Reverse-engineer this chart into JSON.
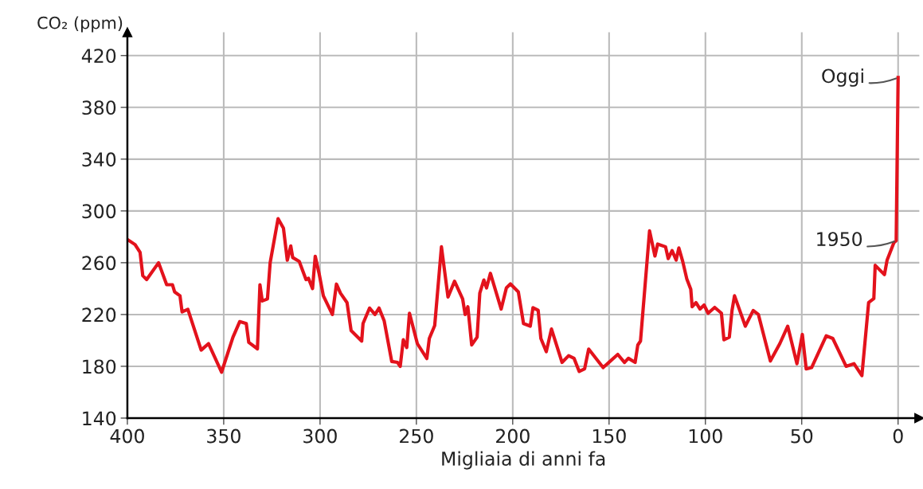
{
  "chart_data": {
    "type": "line",
    "ylabel": "CO₂ (ppm)",
    "xlabel": "Migliaia di anni fa",
    "x": [
      400,
      396,
      393.4,
      392,
      390,
      383.8,
      379.6,
      376.6,
      375.5,
      372.7,
      371.6,
      368.6,
      361.7,
      357.9,
      351.1,
      345.2,
      341.7,
      338.3,
      337,
      332.5,
      331.2,
      330,
      327.3,
      325.9,
      321.8,
      319,
      317,
      315.2,
      314.2,
      310.8,
      307.3,
      306,
      303.9,
      302.5,
      300.4,
      298.3,
      293.6,
      291.5,
      289.4,
      286,
      283.9,
      278.4,
      277.7,
      274.3,
      271.5,
      269.4,
      266.7,
      262.8,
      259.8,
      258.4,
      256.8,
      255,
      253.6,
      249.5,
      244.6,
      243.3,
      240.5,
      237,
      233.6,
      230.2,
      226,
      224.7,
      223.3,
      221.3,
      218.5,
      217.1,
      215,
      213.6,
      211.6,
      206,
      203.3,
      201.2,
      197.1,
      194.4,
      190.9,
      189.5,
      186.8,
      185.4,
      182.6,
      179.9,
      174.4,
      171,
      168.2,
      165.5,
      162.7,
      160.6,
      153.1,
      145.5,
      142,
      140,
      136.5,
      135.1,
      133.7,
      129,
      126.2,
      124.8,
      120.7,
      119.3,
      117.3,
      115.2,
      113.8,
      111.8,
      109.7,
      107.6,
      106.9,
      104.9,
      102.8,
      100.7,
      98.6,
      95.2,
      91.7,
      90.4,
      87.6,
      86.2,
      84.9,
      79.3,
      75.2,
      72.5,
      66.3,
      61.4,
      57.3,
      52.5,
      49.7,
      47.7,
      44.9,
      37.3,
      33.9,
      27,
      22.9,
      18.8,
      15.3,
      12.6,
      11.9,
      7.1,
      5.7,
      2.2,
      1,
      0
    ],
    "series": [
      {
        "color": "#e3121c",
        "values": [
          278,
          274,
          268,
          250,
          247,
          260,
          243,
          243,
          237.5,
          234.5,
          222,
          224,
          192.5,
          197.5,
          175.5,
          202.5,
          214.5,
          213,
          198.5,
          193.5,
          243,
          230.5,
          232,
          260,
          294,
          286.7,
          262,
          273,
          264,
          261,
          247,
          248,
          240,
          265,
          251,
          234.5,
          220,
          243.5,
          236.5,
          229.2,
          207.7,
          199.5,
          213,
          225,
          220,
          225,
          215,
          183.7,
          183,
          180,
          200.5,
          194.5,
          221,
          197.5,
          186,
          201.5,
          211.5,
          272.3,
          233.5,
          245.7,
          232,
          220,
          226,
          196.5,
          202.5,
          236.5,
          246.7,
          240.5,
          251.8,
          224.2,
          240.5,
          243.6,
          237.5,
          213,
          211,
          225.3,
          223.2,
          201.5,
          191.3,
          208.8,
          183,
          188.2,
          186.2,
          176,
          178,
          193.3,
          179,
          189.2,
          183,
          186.2,
          183,
          196.4,
          199.5,
          284.6,
          265.2,
          274.4,
          272.3,
          263.2,
          269.4,
          262.1,
          271.4,
          261.1,
          247.7,
          239.5,
          226,
          229.2,
          224.2,
          227.3,
          221,
          225.5,
          221,
          200.5,
          202.5,
          223.1,
          234.5,
          211,
          223.1,
          220,
          184.1,
          197.5,
          211,
          182,
          204.6,
          178,
          179,
          203.6,
          201.5,
          180,
          182,
          172.8,
          229.2,
          232.3,
          258,
          250.8,
          262.1,
          275.5,
          277,
          403
        ]
      }
    ],
    "xlim": [
      400,
      -11
    ],
    "ylim": [
      140,
      438
    ],
    "xticks": [
      400,
      350,
      300,
      250,
      200,
      150,
      100,
      50,
      0
    ],
    "yticks": [
      140,
      180,
      220,
      260,
      300,
      340,
      380,
      420
    ],
    "grid": true,
    "marker": "none",
    "line_style": "solid",
    "annotations": [
      {
        "text": "Oggi",
        "x": 0,
        "y": 403
      },
      {
        "text": "1950",
        "x": 1,
        "y": 277
      }
    ]
  }
}
